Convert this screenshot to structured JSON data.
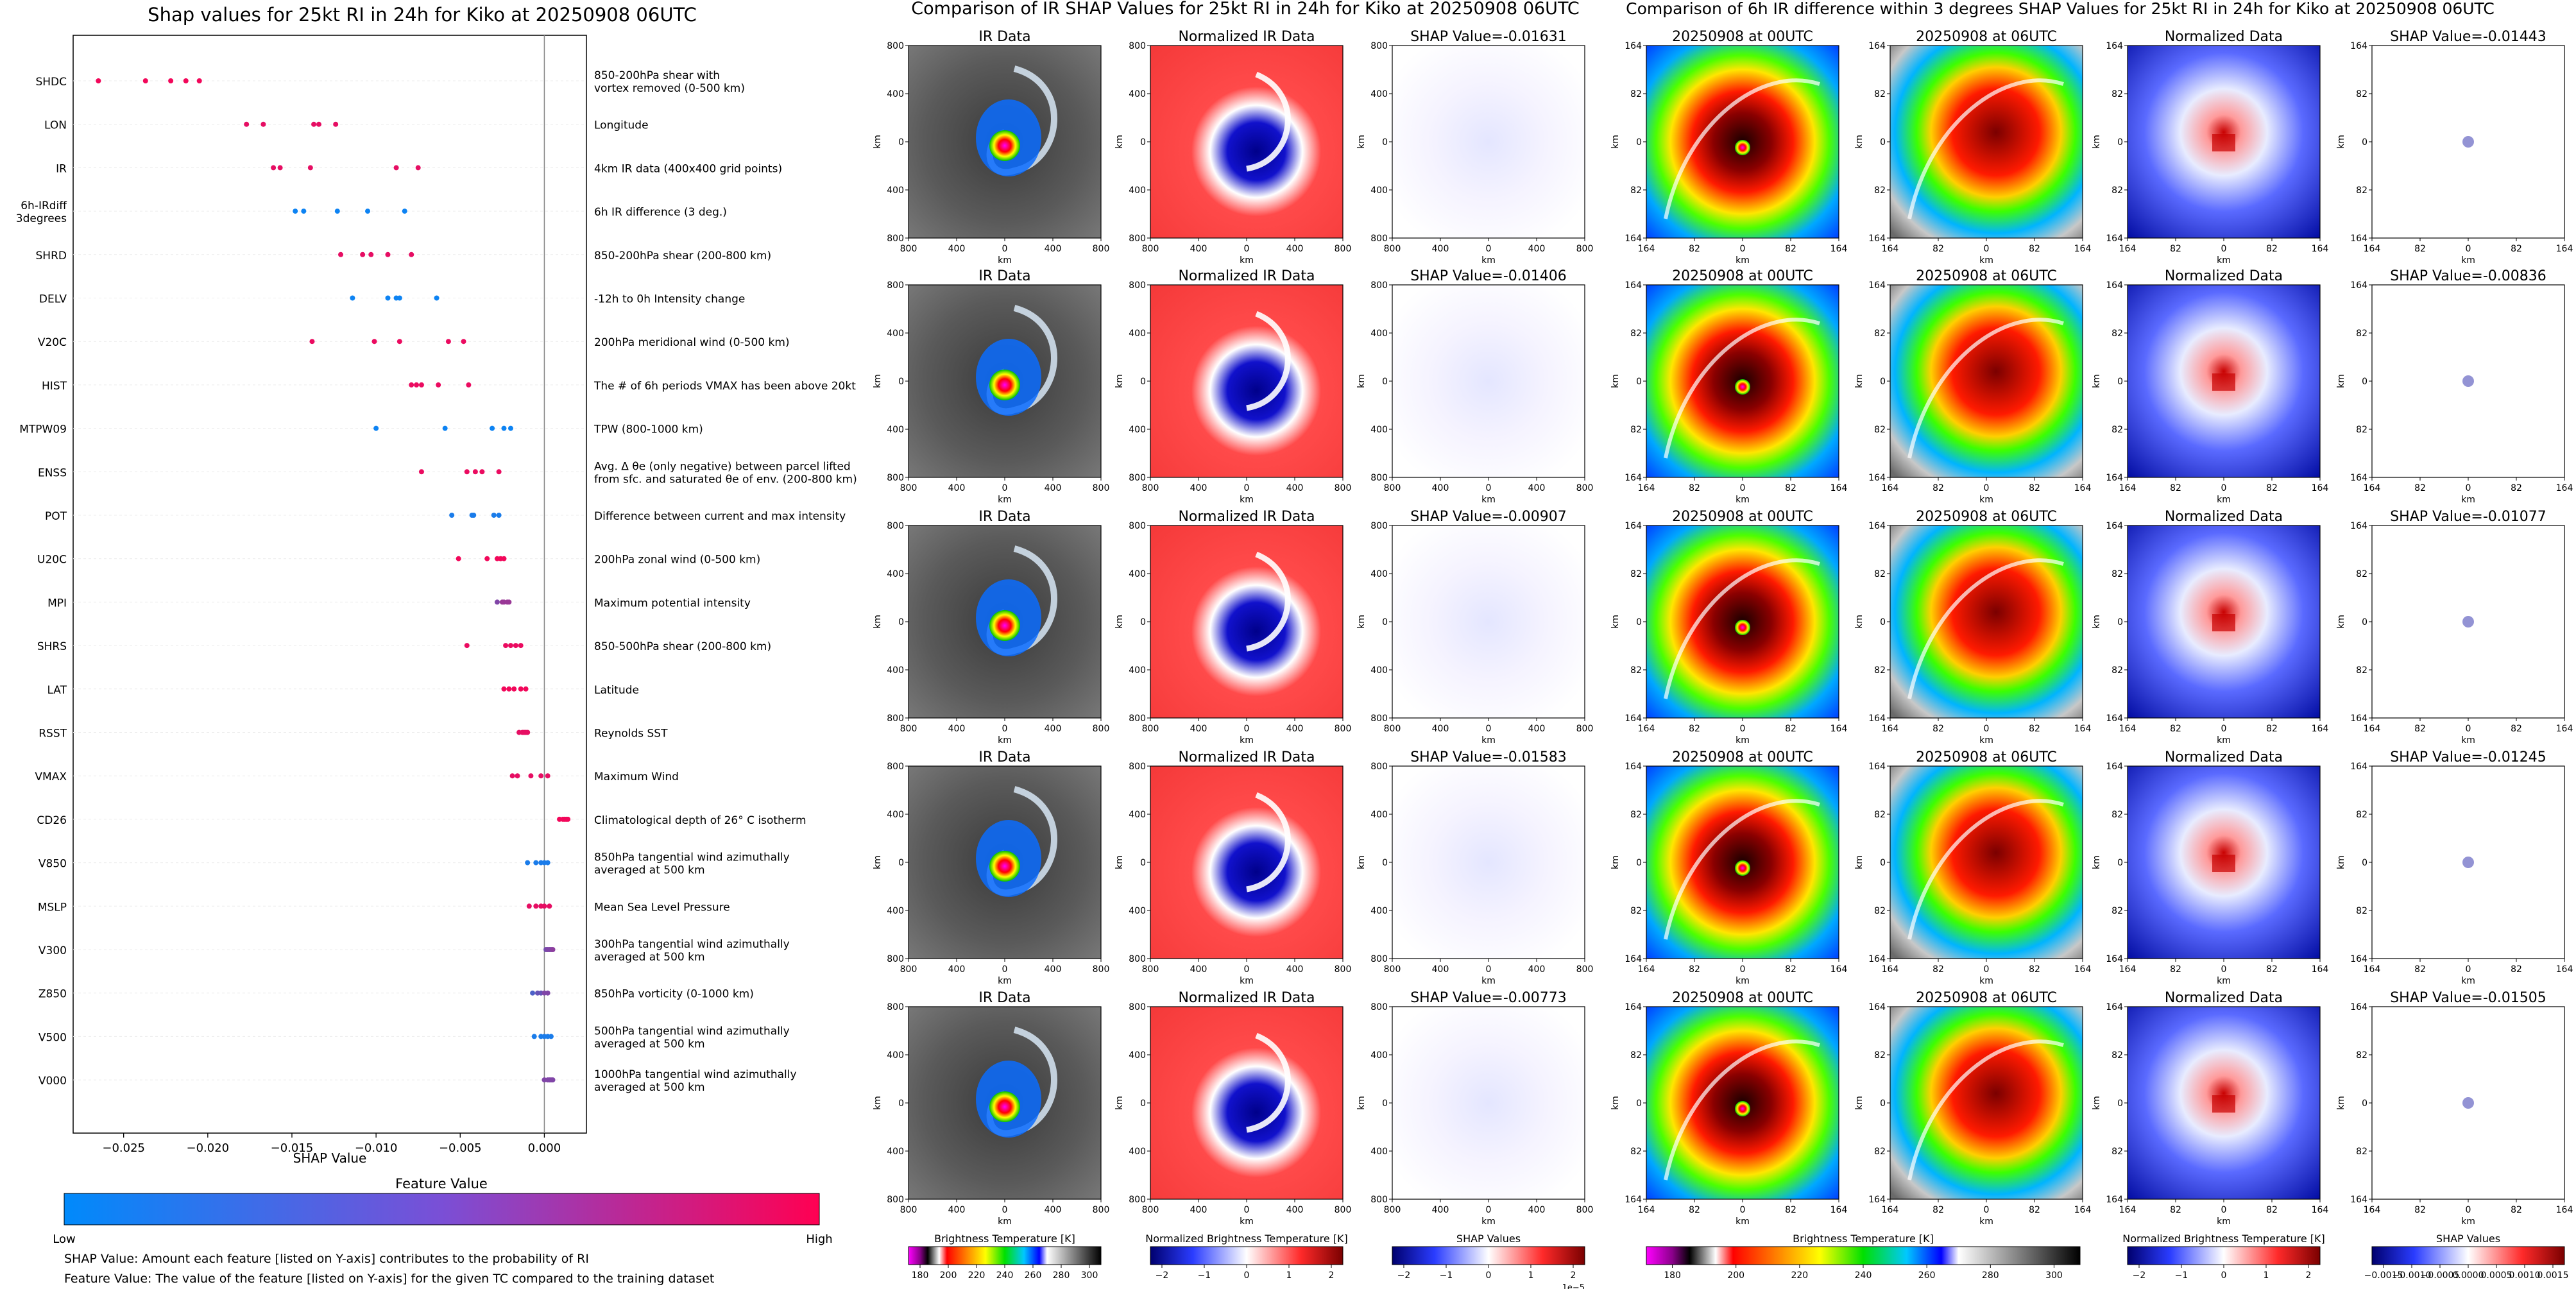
{
  "chart_data": {
    "type": "scatter",
    "title": "Shap values for 25kt RI in 24h for Kiko at 20250908 06UTC",
    "xlabel": "SHAP Value",
    "xlim": [
      -0.028,
      0.0025
    ],
    "xticks": [
      "−0.025",
      "−0.020",
      "−0.015",
      "−0.010",
      "−0.005",
      "0.000"
    ],
    "xtick_values": [
      -0.025,
      -0.02,
      -0.015,
      -0.01,
      -0.005,
      0.0
    ],
    "features": [
      {
        "name": "SHDC",
        "desc": [
          "850-200hPa shear with",
          "vortex removed (0-500 km)"
        ],
        "points": [
          [
            -0.0265,
            0.95
          ],
          [
            -0.0237,
            0.95
          ],
          [
            -0.0222,
            0.95
          ],
          [
            -0.0213,
            0.95
          ],
          [
            -0.0205,
            0.95
          ]
        ]
      },
      {
        "name": "LON",
        "desc": [
          "Longitude"
        ],
        "points": [
          [
            -0.0177,
            0.9
          ],
          [
            -0.0167,
            0.9
          ],
          [
            -0.0137,
            0.9
          ],
          [
            -0.0134,
            0.9
          ],
          [
            -0.0124,
            0.9
          ]
        ]
      },
      {
        "name": "IR",
        "desc": [
          "4km IR data (400x400 grid points)"
        ],
        "points": [
          [
            -0.0161,
            0.9
          ],
          [
            -0.0157,
            0.9
          ],
          [
            -0.0139,
            0.9
          ],
          [
            -0.0088,
            0.9
          ],
          [
            -0.0075,
            0.9
          ]
        ]
      },
      {
        "name": "6h-IRdiff\n3degrees",
        "desc": [
          "6h IR difference (3 deg.)"
        ],
        "points": [
          [
            -0.0148,
            0.05
          ],
          [
            -0.0143,
            0.05
          ],
          [
            -0.0123,
            0.05
          ],
          [
            -0.0105,
            0.05
          ],
          [
            -0.0083,
            0.05
          ]
        ]
      },
      {
        "name": "SHRD",
        "desc": [
          "850-200hPa shear (200-800 km)"
        ],
        "points": [
          [
            -0.0121,
            0.9
          ],
          [
            -0.0108,
            0.9
          ],
          [
            -0.0103,
            0.9
          ],
          [
            -0.0093,
            0.9
          ],
          [
            -0.0079,
            0.9
          ]
        ]
      },
      {
        "name": "DELV",
        "desc": [
          "-12h to 0h Intensity change"
        ],
        "points": [
          [
            -0.0114,
            0.05
          ],
          [
            -0.0093,
            0.05
          ],
          [
            -0.0088,
            0.05
          ],
          [
            -0.0086,
            0.05
          ],
          [
            -0.0064,
            0.05
          ]
        ]
      },
      {
        "name": "V20C",
        "desc": [
          "200hPa meridional wind (0-500 km)"
        ],
        "points": [
          [
            -0.0138,
            0.92
          ],
          [
            -0.0101,
            0.92
          ],
          [
            -0.0086,
            0.92
          ],
          [
            -0.0057,
            0.92
          ],
          [
            -0.0048,
            0.92
          ]
        ]
      },
      {
        "name": "HIST",
        "desc": [
          "The # of 6h periods VMAX has been above 20kt"
        ],
        "points": [
          [
            -0.0079,
            0.92
          ],
          [
            -0.0076,
            0.92
          ],
          [
            -0.0073,
            0.92
          ],
          [
            -0.0063,
            0.92
          ],
          [
            -0.0045,
            0.92
          ]
        ]
      },
      {
        "name": "MTPW09",
        "desc": [
          "TPW (800-1000 km)"
        ],
        "points": [
          [
            -0.01,
            0.05
          ],
          [
            -0.0059,
            0.05
          ],
          [
            -0.0031,
            0.05
          ],
          [
            -0.0024,
            0.05
          ],
          [
            -0.002,
            0.05
          ]
        ]
      },
      {
        "name": "ENSS",
        "desc": [
          "Avg. Δ θe (only negative) between parcel lifted",
          "from sfc. and saturated θe of env. (200-800 km)"
        ],
        "points": [
          [
            -0.0073,
            0.92
          ],
          [
            -0.0046,
            0.92
          ],
          [
            -0.0041,
            0.92
          ],
          [
            -0.0037,
            0.92
          ],
          [
            -0.0027,
            0.92
          ]
        ]
      },
      {
        "name": "POT",
        "desc": [
          "Difference between current and max intensity"
        ],
        "points": [
          [
            -0.0055,
            0.1
          ],
          [
            -0.0043,
            0.1
          ],
          [
            -0.0042,
            0.1
          ],
          [
            -0.003,
            0.1
          ],
          [
            -0.0027,
            0.1
          ]
        ]
      },
      {
        "name": "U20C",
        "desc": [
          "200hPa zonal wind (0-500 km)"
        ],
        "points": [
          [
            -0.0051,
            0.95
          ],
          [
            -0.0034,
            0.95
          ],
          [
            -0.0028,
            0.95
          ],
          [
            -0.0026,
            0.95
          ],
          [
            -0.0024,
            0.95
          ]
        ]
      },
      {
        "name": "MPI",
        "desc": [
          "Maximum potential intensity"
        ],
        "points": [
          [
            -0.0028,
            0.5
          ],
          [
            -0.0025,
            0.6
          ],
          [
            -0.0024,
            0.6
          ],
          [
            -0.0022,
            0.6
          ],
          [
            -0.0021,
            0.6
          ]
        ]
      },
      {
        "name": "SHRS",
        "desc": [
          "850-500hPa shear (200-800 km)"
        ],
        "points": [
          [
            -0.0046,
            0.92
          ],
          [
            -0.0023,
            0.92
          ],
          [
            -0.002,
            0.92
          ],
          [
            -0.0017,
            0.92
          ],
          [
            -0.0014,
            0.92
          ]
        ]
      },
      {
        "name": "LAT",
        "desc": [
          "Latitude"
        ],
        "points": [
          [
            -0.0024,
            0.95
          ],
          [
            -0.0021,
            0.95
          ],
          [
            -0.0018,
            0.95
          ],
          [
            -0.0014,
            0.95
          ],
          [
            -0.0011,
            0.95
          ]
        ]
      },
      {
        "name": "RSST",
        "desc": [
          "Reynolds SST"
        ],
        "points": [
          [
            -0.0015,
            0.9
          ],
          [
            -0.0013,
            0.9
          ],
          [
            -0.0012,
            0.9
          ],
          [
            -0.0011,
            0.9
          ],
          [
            -0.001,
            0.9
          ]
        ]
      },
      {
        "name": "VMAX",
        "desc": [
          "Maximum Wind"
        ],
        "points": [
          [
            -0.0019,
            0.9
          ],
          [
            -0.0016,
            0.9
          ],
          [
            -0.0008,
            0.9
          ],
          [
            -0.0002,
            0.9
          ],
          [
            0.0002,
            0.9
          ]
        ]
      },
      {
        "name": "CD26",
        "desc": [
          "Climatological depth of 26° C isotherm"
        ],
        "points": [
          [
            0.0009,
            0.95
          ],
          [
            0.0011,
            0.95
          ],
          [
            0.0012,
            0.95
          ],
          [
            0.0013,
            0.95
          ],
          [
            0.0014,
            0.95
          ]
        ]
      },
      {
        "name": "V850",
        "desc": [
          "850hPa tangential wind azimuthally",
          "averaged at 500 km"
        ],
        "points": [
          [
            -0.001,
            0.1
          ],
          [
            -0.0005,
            0.1
          ],
          [
            -0.0002,
            0.1
          ],
          [
            0.0,
            0.1
          ],
          [
            0.0002,
            0.1
          ]
        ]
      },
      {
        "name": "MSLP",
        "desc": [
          "Mean Sea Level Pressure"
        ],
        "points": [
          [
            -0.0009,
            0.9
          ],
          [
            -0.0005,
            0.9
          ],
          [
            -0.0002,
            0.9
          ],
          [
            0.0,
            0.9
          ],
          [
            0.0003,
            0.9
          ]
        ]
      },
      {
        "name": "V300",
        "desc": [
          "300hPa tangential wind azimuthally",
          "averaged at 500 km"
        ],
        "points": [
          [
            0.0001,
            0.45
          ],
          [
            0.0002,
            0.5
          ],
          [
            0.0003,
            0.5
          ],
          [
            0.0004,
            0.5
          ],
          [
            0.0005,
            0.55
          ]
        ]
      },
      {
        "name": "Z850",
        "desc": [
          "850hPa vorticity (0-1000 km)"
        ],
        "points": [
          [
            -0.0007,
            0.3
          ],
          [
            -0.0004,
            0.4
          ],
          [
            -0.0002,
            0.4
          ],
          [
            0.0,
            0.5
          ],
          [
            0.0002,
            0.5
          ]
        ]
      },
      {
        "name": "V500",
        "desc": [
          "500hPa tangential wind azimuthally",
          "averaged at 500 km"
        ],
        "points": [
          [
            -0.0006,
            0.1
          ],
          [
            -0.0002,
            0.1
          ],
          [
            0.0,
            0.1
          ],
          [
            0.0002,
            0.1
          ],
          [
            0.0004,
            0.1
          ]
        ]
      },
      {
        "name": "V000",
        "desc": [
          "1000hPa tangential wind azimuthally",
          "averaged at 500 km"
        ],
        "points": [
          [
            0.0,
            0.5
          ],
          [
            0.0002,
            0.5
          ],
          [
            0.0003,
            0.5
          ],
          [
            0.0004,
            0.5
          ],
          [
            0.0005,
            0.5
          ]
        ]
      }
    ],
    "colorbar": {
      "label": "Feature Value",
      "low": "Low",
      "high": "High"
    },
    "notes": [
      "SHAP Value: Amount each feature [listed on Y-axis] contributes to the probability of RI",
      "Feature Value: The value of the feature [listed on Y-axis] for the given TC compared to the training dataset"
    ]
  },
  "ir_section": {
    "title": "Comparison of IR SHAP Values for 25kt RI in 24h for Kiko at 20250908 06UTC",
    "panel_titles": [
      "IR Data",
      "Normalized IR Data"
    ],
    "shap_prefix": "SHAP Value=",
    "shap_values": [
      "-0.01631",
      "-0.01406",
      "-0.00907",
      "-0.01583",
      "-0.00773"
    ],
    "yticks": [
      "800",
      "400",
      "0",
      "400",
      "800"
    ],
    "xticks": [
      "800",
      "400",
      "0",
      "400",
      "800"
    ],
    "axis_label": "km",
    "colorbars": [
      {
        "label": "Brightness Temperature [K]",
        "ticks": [
          "180",
          "200",
          "220",
          "240",
          "260",
          "280",
          "300"
        ]
      },
      {
        "label": "Normalized Brightness Temperature [K]",
        "ticks": [
          "−2",
          "−1",
          "0",
          "1",
          "2"
        ]
      },
      {
        "label": "SHAP Values",
        "ticks": [
          "−2",
          "−1",
          "0",
          "1",
          "2"
        ],
        "offset": "1e−5"
      }
    ]
  },
  "diff_section": {
    "title": "Comparison of 6h IR difference within 3 degrees SHAP Values for 25kt RI in 24h for Kiko at 20250908 06UTC",
    "panel_titles": [
      "20250908 at 00UTC",
      "20250908 at 06UTC",
      "Normalized Data"
    ],
    "shap_prefix": "SHAP Value=",
    "shap_values": [
      "-0.01443",
      "-0.00836",
      "-0.01077",
      "-0.01245",
      "-0.01505"
    ],
    "yticks": [
      "164",
      "82",
      "0",
      "82",
      "164"
    ],
    "xticks": [
      "164",
      "82",
      "0",
      "82",
      "164"
    ],
    "axis_label": "km",
    "colorbars": [
      {
        "label": "Brightness Temperature [K]",
        "ticks": [
          "180",
          "200",
          "220",
          "240",
          "260",
          "280",
          "300"
        ]
      },
      {
        "label": "Normalized Brightness Temperature [K]",
        "ticks": [
          "−2",
          "−1",
          "0",
          "1",
          "2"
        ]
      },
      {
        "label": "SHAP Values",
        "ticks": [
          "−0.0015",
          "−0.0010",
          "−0.0005",
          "0.0000",
          "0.0005",
          "0.0010",
          "0.0015"
        ]
      }
    ]
  },
  "colors": {
    "shap_low": "#008afb",
    "shap_high": "#ff0052"
  }
}
